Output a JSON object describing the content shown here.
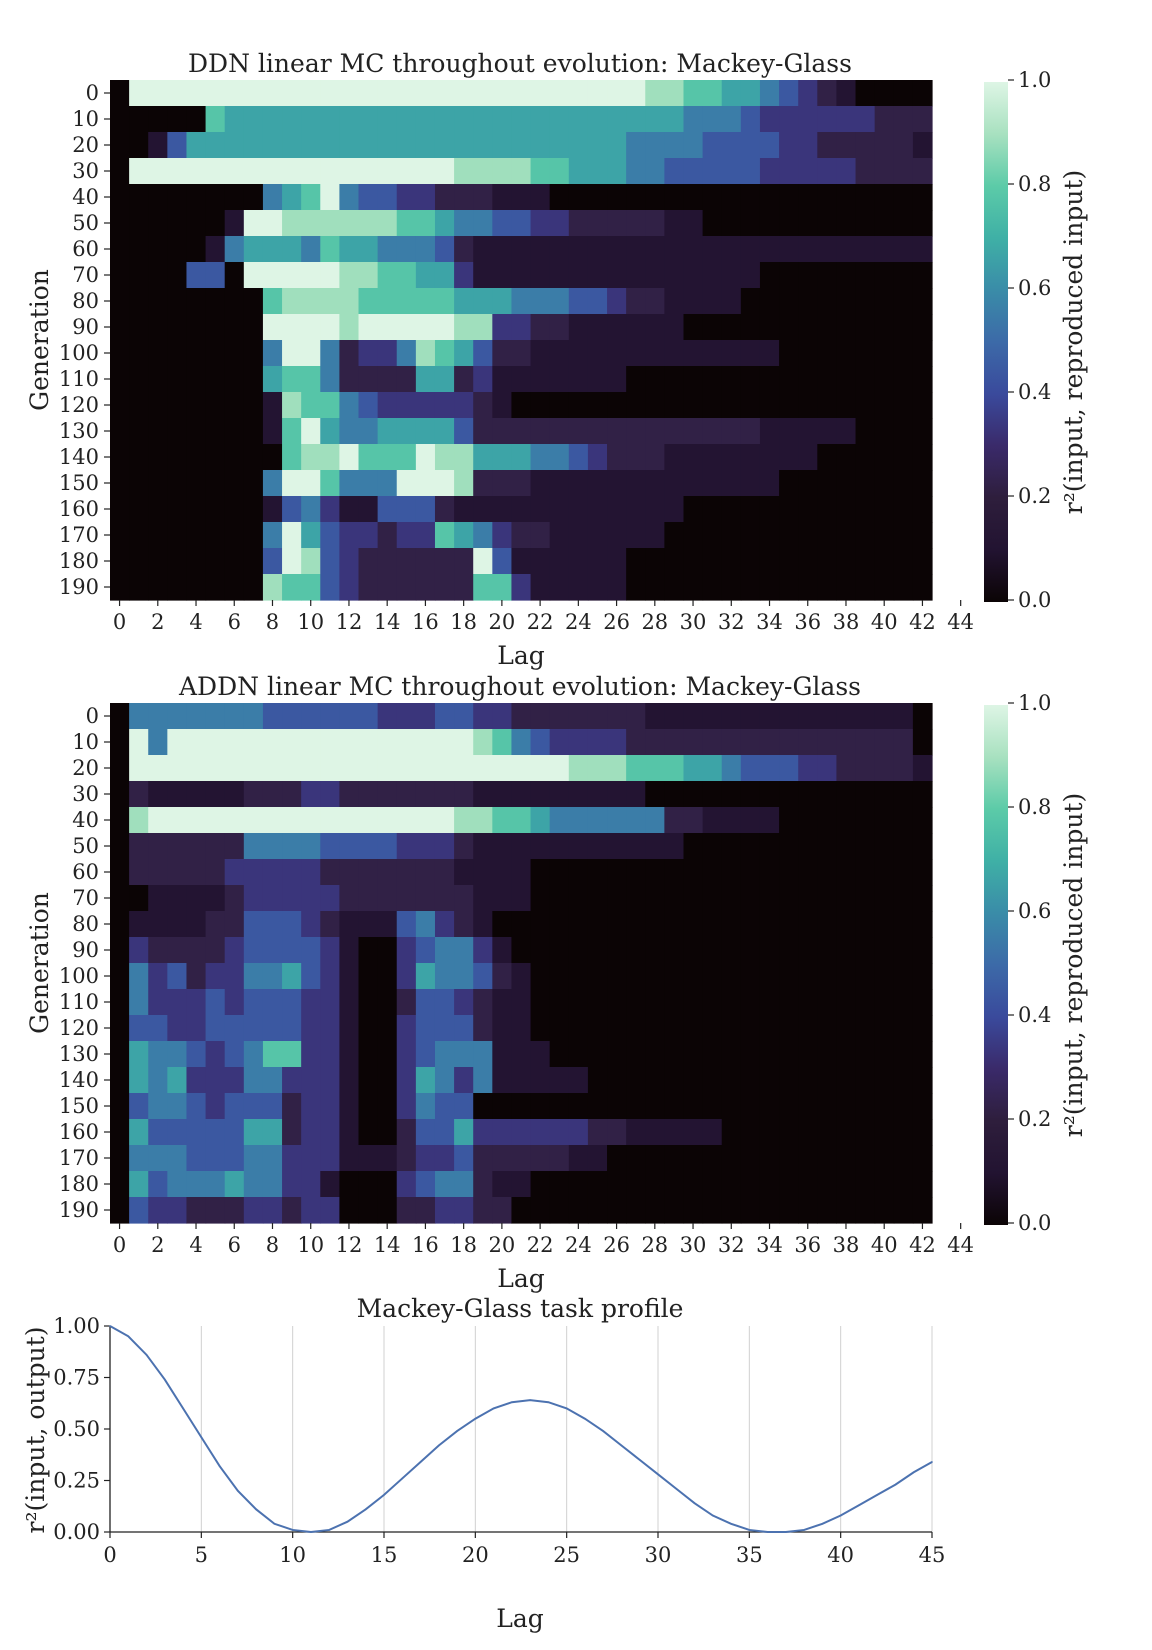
{
  "chart_data": [
    {
      "type": "heatmap",
      "title": "DDN linear MC throughout evolution: Mackey-Glass",
      "xlabel": "Lag",
      "ylabel": "Generation",
      "x_ticks": [
        "0",
        "2",
        "4",
        "6",
        "8",
        "10",
        "12",
        "14",
        "16",
        "18",
        "20",
        "22",
        "24",
        "26",
        "28",
        "30",
        "32",
        "34",
        "36",
        "38",
        "40",
        "42",
        "44"
      ],
      "y_ticks": [
        "0",
        "10",
        "20",
        "30",
        "40",
        "50",
        "60",
        "70",
        "80",
        "90",
        "100",
        "110",
        "120",
        "130",
        "140",
        "150",
        "160",
        "170",
        "180",
        "190"
      ],
      "colorbar": {
        "label": "r²(input, reproduced input)",
        "ticks": [
          "0.0",
          "0.2",
          "0.4",
          "0.6",
          "0.8",
          "1.0"
        ],
        "range": [
          0,
          1
        ]
      },
      "rows": [
        "0999999999999999999999999999887766543210000",
        "0000076666666666666666666666665554333333222",
        "0014666666666666666666666665555444433222221",
        "0999999999999999998888776665544444333332222",
        "0000000056795443322211100000000000000000000",
        "0000001998888887765544332222211000000000000",
        "0000015666576655542111111111111111111111111",
        "0000440999998877663111111111111111000000000",
        "0000000078888777776665554432211110000000000",
        "0000000099998999998833221111110000000000000",
        "0000000059952335876422111111111111100000000",
        "0000000067752222662311111110000000000000000",
        "0000000018775433333210000000000000000000000",
        "0000000017965566664222222222222222111110000",
        "0000000007889777988666554322211111111000000",
        "0000000059975559998222111111111111100000000",
        "0000000014531144421111111111110000000000000",
        "0000000059643323376532211111100000000000000",
        "0000000049843222222941111110000000000000000",
        "0000000087743222222773111110000000000000000"
      ]
    },
    {
      "type": "heatmap",
      "title": "ADDN linear MC throughout evolution: Mackey-Glass",
      "xlabel": "Lag",
      "ylabel": "Generation",
      "x_ticks": [
        "0",
        "2",
        "4",
        "6",
        "8",
        "10",
        "12",
        "14",
        "16",
        "18",
        "20",
        "22",
        "24",
        "26",
        "28",
        "30",
        "32",
        "34",
        "36",
        "38",
        "40",
        "42",
        "44"
      ],
      "y_ticks": [
        "0",
        "10",
        "20",
        "30",
        "40",
        "50",
        "60",
        "70",
        "80",
        "90",
        "100",
        "110",
        "120",
        "130",
        "140",
        "150",
        "160",
        "170",
        "180",
        "190"
      ],
      "colorbar": {
        "label": "r²(input, reproduced input)",
        "ticks": [
          "0.0",
          "0.2",
          "0.4",
          "0.6",
          "0.8",
          "1.0"
        ],
        "range": [
          0,
          1
        ]
      },
      "rows": [
        "0555555544444433344332222222111111111111110",
        "0959999999999999999875433332222222222222220",
        "0999999999999999999999998887776654443322221",
        "0211111222332222222111111111000000000000000",
        "0899999999999999998877655555522111100000000",
        "0222222555544443332111111111110000000000000",
        "0222223333322222221111000000000000000000000",
        "0011112333332222222111000000000000000000000",
        "0111122444321114532100000000000000000000000",
        "0322223444431003455310000000000000000000000",
        "0534233556431003655421000000000000000000000",
        "0533343444331002443211000000000000000000000",
        "0443344444331003444211000000000000000000000",
        "0655434577331003455511100000000000000000000",
        "0656333553331003653511111000000000000000000",
        "0455434442331003544000000000000000000000000",
        "0644444662331002446333333221111100000000000",
        "0555444553331112334222221100000000000000000",
        "0645556553310003455211000000000000000000000",
        "0433222332330002233220000000000000000000000"
      ]
    },
    {
      "type": "line",
      "title": "Mackey-Glass task profile",
      "xlabel": "Lag",
      "ylabel": "r²(input, output)",
      "xlim": [
        0,
        45
      ],
      "ylim": [
        0,
        1
      ],
      "x_ticks": [
        "0",
        "5",
        "10",
        "15",
        "20",
        "25",
        "30",
        "35",
        "40",
        "45"
      ],
      "y_ticks": [
        "0.00",
        "0.25",
        "0.50",
        "0.75",
        "1.00"
      ],
      "grid": "vertical",
      "line_color": "#4c72b0",
      "x": [
        0,
        1,
        2,
        3,
        4,
        5,
        6,
        7,
        8,
        9,
        10,
        11,
        12,
        13,
        14,
        15,
        16,
        17,
        18,
        19,
        20,
        21,
        22,
        23,
        24,
        25,
        26,
        27,
        28,
        29,
        30,
        31,
        32,
        33,
        34,
        35,
        36,
        37,
        38,
        39,
        40,
        41,
        42,
        43,
        44,
        45
      ],
      "y": [
        1.0,
        0.95,
        0.86,
        0.74,
        0.6,
        0.46,
        0.32,
        0.2,
        0.11,
        0.04,
        0.01,
        0.0,
        0.01,
        0.05,
        0.11,
        0.18,
        0.26,
        0.34,
        0.42,
        0.49,
        0.55,
        0.6,
        0.63,
        0.64,
        0.63,
        0.6,
        0.55,
        0.49,
        0.42,
        0.35,
        0.28,
        0.21,
        0.14,
        0.08,
        0.04,
        0.01,
        0.0,
        0.0,
        0.01,
        0.04,
        0.08,
        0.13,
        0.18,
        0.23,
        0.29,
        0.34
      ]
    }
  ]
}
